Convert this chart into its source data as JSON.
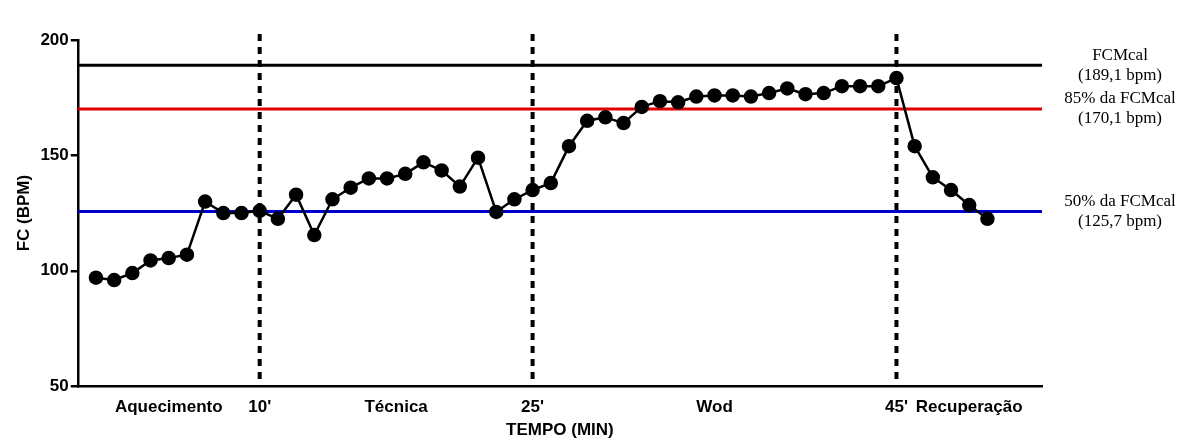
{
  "chart_data": {
    "type": "line",
    "xlabel": "TEMPO (MIN)",
    "ylabel": "FC (BPM)",
    "x": [
      1,
      2,
      3,
      4,
      5,
      6,
      7,
      8,
      9,
      10,
      11,
      12,
      13,
      14,
      15,
      16,
      17,
      18,
      19,
      20,
      21,
      22,
      23,
      24,
      25,
      26,
      27,
      28,
      29,
      30,
      31,
      32,
      33,
      34,
      35,
      36,
      37,
      38,
      39,
      40,
      41,
      42,
      43,
      44,
      45,
      46,
      47,
      48,
      49,
      50
    ],
    "series": [
      {
        "color": "#000000",
        "values": [
          97,
          96,
          99,
          104.5,
          105.5,
          107,
          130,
          125,
          125,
          126,
          122.5,
          133,
          115.5,
          131,
          136,
          140,
          140,
          142,
          147,
          143.5,
          136.5,
          149,
          125.5,
          131,
          135,
          138,
          154,
          165,
          166.5,
          164,
          171,
          173.5,
          173,
          175.5,
          176,
          176,
          175.5,
          177,
          179,
          176.5,
          177,
          180,
          180,
          180,
          183.5,
          154,
          140.5,
          135,
          128.5,
          122.5
        ]
      }
    ],
    "marker": "circle",
    "line_style": "solid",
    "xlim": [
      0,
      53
    ],
    "xticks": [
      {
        "value": 10,
        "label": "10'"
      },
      {
        "value": 25,
        "label": "25'"
      },
      {
        "value": 45,
        "label": "45'"
      }
    ],
    "annotations": [
      "Aquecimento",
      "Técnica",
      "Wod",
      "Recuperação"
    ],
    "ylim": [
      50,
      200
    ],
    "yticks": [
      50,
      100,
      150,
      200
    ],
    "ref_lines": [
      {
        "axis": "y",
        "value": 189.1,
        "label": "FCMcal (189,1 bpm)",
        "color": "#000000",
        "line_style": "solid"
      },
      {
        "axis": "y",
        "value": 170.1,
        "label": "85% da FCMcal (170,1 bpm)",
        "color": "#e00000",
        "line_style": "solid"
      },
      {
        "axis": "y",
        "value": 125.7,
        "label": "50% da FCMcal (125,7 bpm)",
        "color": "#0000cc",
        "line_style": "solid"
      },
      {
        "axis": "x",
        "value": 10,
        "color": "#000000",
        "line_style": "dashed"
      },
      {
        "axis": "x",
        "value": 25,
        "color": "#000000",
        "line_style": "dashed"
      },
      {
        "axis": "x",
        "value": 45,
        "color": "#000000",
        "line_style": "dashed"
      }
    ]
  }
}
